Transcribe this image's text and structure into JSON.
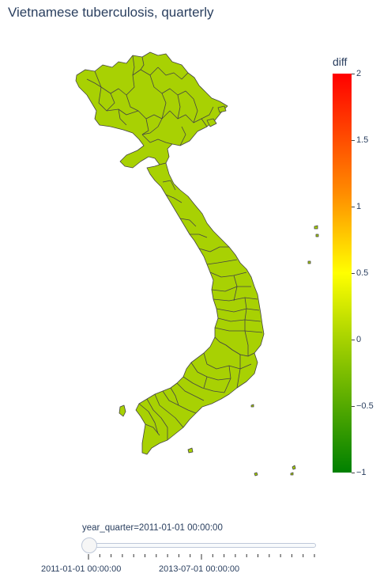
{
  "title": "Vietnamese tuberculosis, quarterly",
  "colorbar": {
    "title": "diff",
    "ticks": [
      "2",
      "1.5",
      "1",
      "0.5",
      "0",
      "−0.5",
      "−1"
    ],
    "range": [
      -1,
      2
    ],
    "colors": [
      "#ff0000",
      "#ffff00",
      "#aad400",
      "#008000"
    ]
  },
  "map": {
    "region_fill": "#a8d103",
    "region_stroke": "#444444",
    "current_value": 0
  },
  "slider": {
    "label": "year_quarter=2011-01-01 00:00:00",
    "tick_labels": [
      "2011-01-01 00:00:00",
      "2013-07-01 00:00:00"
    ],
    "position": 0
  }
}
